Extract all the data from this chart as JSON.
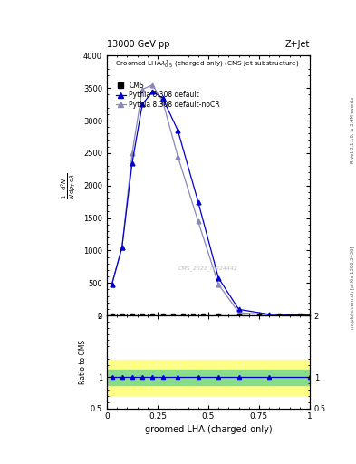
{
  "title_top": "13000 GeV pp",
  "title_right": "Z+Jet",
  "xlabel": "groomed LHA (charged-only)",
  "right_label_top": "Rivet 3.1.10, ≥ 3.4M events",
  "right_label_bot": "mcplots.cern.ch [arXiv:1306.3436]",
  "watermark": "CMS_2021_I1924442",
  "pythia_default_x": [
    0.025,
    0.075,
    0.125,
    0.175,
    0.225,
    0.275,
    0.35,
    0.45,
    0.55,
    0.65,
    0.8,
    1.0
  ],
  "pythia_default_y": [
    480,
    1050,
    2350,
    3250,
    3450,
    3350,
    2850,
    1750,
    580,
    95,
    18,
    5
  ],
  "pythia_nocr_x": [
    0.025,
    0.075,
    0.125,
    0.175,
    0.225,
    0.275,
    0.35,
    0.45,
    0.55,
    0.65,
    0.8,
    1.0
  ],
  "pythia_nocr_y": [
    480,
    1050,
    2500,
    3480,
    3550,
    3300,
    2450,
    1450,
    480,
    45,
    10,
    5
  ],
  "cms_x": [
    0.025,
    0.075,
    0.125,
    0.175,
    0.225,
    0.275,
    0.325,
    0.375,
    0.425,
    0.475,
    0.55,
    0.65,
    0.75,
    0.85,
    0.95
  ],
  "cms_y": [
    0,
    0,
    0,
    0,
    0,
    0,
    0,
    0,
    0,
    0,
    0,
    0,
    0,
    0,
    0
  ],
  "ratio_x": [
    0.025,
    0.075,
    0.125,
    0.175,
    0.225,
    0.275,
    0.35,
    0.45,
    0.55,
    0.65,
    0.8,
    1.0
  ],
  "ratio_default_y": [
    1.0,
    1.0,
    1.0,
    1.0,
    1.0,
    1.0,
    1.0,
    1.0,
    1.0,
    1.0,
    1.0,
    1.0
  ],
  "ylim_main": [
    0,
    4000
  ],
  "ylim_ratio": [
    0.5,
    2.0
  ],
  "yticks_main": [
    0,
    500,
    1000,
    1500,
    2000,
    2500,
    3000,
    3500,
    4000
  ],
  "color_default": "#0000cc",
  "color_nocr": "#8888bb",
  "color_cms": "#000000",
  "green_band_low": 0.88,
  "green_band_high": 1.12,
  "yellow_band_low": 0.72,
  "yellow_band_high": 1.28
}
